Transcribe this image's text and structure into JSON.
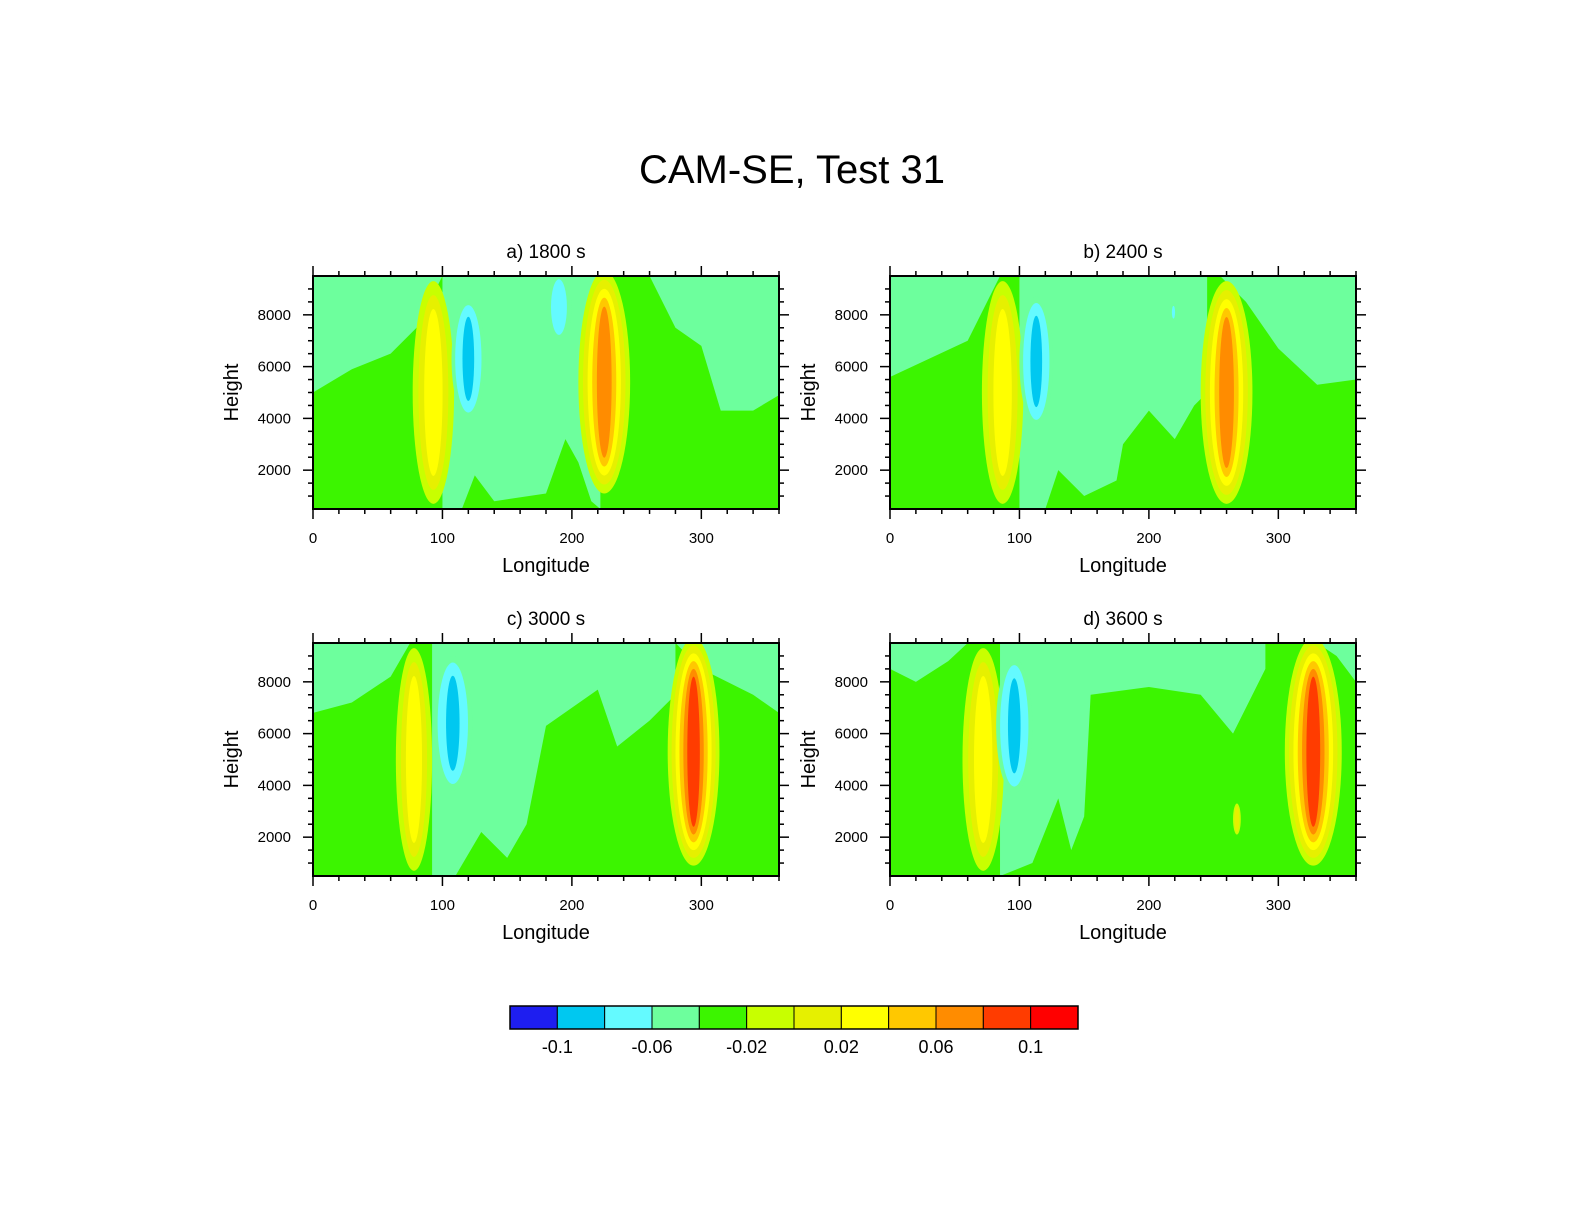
{
  "figure": {
    "title": "CAM-SE, Test 31"
  },
  "chart_data": {
    "type": "contour",
    "xlabel": "Longitude",
    "ylabel": "Height",
    "xlim": [
      0,
      360
    ],
    "ylim": [
      500,
      9500
    ],
    "xticks": [
      0,
      100,
      200,
      300
    ],
    "yticks": [
      2000,
      4000,
      6000,
      8000
    ],
    "colorbar": {
      "colors": [
        "#1e1ef0",
        "#00c8f0",
        "#64faff",
        "#6dff9d",
        "#3cf500",
        "#c8ff00",
        "#e6f000",
        "#ffff00",
        "#ffc800",
        "#ff8c00",
        "#ff3c00",
        "#ff0000"
      ],
      "tick_labels": [
        "-0.1",
        "-0.06",
        "-0.02",
        "0.02",
        "0.06",
        "0.1"
      ],
      "levels": [
        -0.1,
        -0.08,
        -0.06,
        -0.04,
        -0.02,
        0,
        0.02,
        0.04,
        0.06,
        0.08,
        0.1
      ]
    },
    "panels": [
      {
        "subtitle": "a) 1800 s",
        "background_color": "#3cf500",
        "upper_region_boundary": [
          [
            0,
            5000
          ],
          [
            30,
            5900
          ],
          [
            60,
            6500
          ],
          [
            80,
            7500
          ],
          [
            100,
            9500
          ],
          [
            170,
            9500
          ],
          [
            200,
            9500
          ],
          [
            210,
            9500
          ],
          [
            260,
            9500
          ],
          [
            280,
            7500
          ],
          [
            300,
            6800
          ],
          [
            315,
            4300
          ],
          [
            340,
            4300
          ],
          [
            360,
            4900
          ]
        ],
        "negative_region_boundary": [
          [
            100,
            500
          ],
          [
            115,
            500
          ],
          [
            125,
            1800
          ],
          [
            140,
            800
          ],
          [
            180,
            1100
          ],
          [
            190,
            2500
          ],
          [
            195,
            3200
          ],
          [
            205,
            2300
          ],
          [
            215,
            800
          ],
          [
            222,
            500
          ]
        ],
        "features": [
          {
            "center_lon": 93,
            "center_height": 5000,
            "half_width_lon": 16,
            "half_height": 4300,
            "peak_level": 3
          },
          {
            "center_lon": 225,
            "center_height": 5400,
            "half_width_lon": 20,
            "half_height": 4300,
            "peak_level": 5
          },
          {
            "center_lon": 120,
            "center_height": 6300,
            "half_width_lon": 13,
            "half_height": 2300,
            "peak_level": -4
          },
          {
            "center_lon": 190,
            "center_height": 8300,
            "half_width_lon": 10,
            "half_height": 1300,
            "peak_level": -2
          }
        ]
      },
      {
        "subtitle": "b) 2400 s",
        "background_color": "#3cf500",
        "upper_region_boundary": [
          [
            0,
            5600
          ],
          [
            30,
            6300
          ],
          [
            60,
            7000
          ],
          [
            85,
            9500
          ],
          [
            255,
            9500
          ],
          [
            275,
            8500
          ],
          [
            300,
            6700
          ],
          [
            330,
            5300
          ],
          [
            360,
            5500
          ]
        ],
        "negative_region_boundary": [
          [
            100,
            500
          ],
          [
            120,
            500
          ],
          [
            130,
            2000
          ],
          [
            150,
            1000
          ],
          [
            175,
            1600
          ],
          [
            180,
            3000
          ],
          [
            200,
            4300
          ],
          [
            220,
            3200
          ],
          [
            235,
            4500
          ],
          [
            245,
            5000
          ]
        ],
        "features": [
          {
            "center_lon": 87,
            "center_height": 5000,
            "half_width_lon": 16,
            "half_height": 4300,
            "peak_level": 3
          },
          {
            "center_lon": 260,
            "center_height": 5000,
            "half_width_lon": 20,
            "half_height": 4300,
            "peak_level": 5
          },
          {
            "center_lon": 113,
            "center_height": 6200,
            "half_width_lon": 13,
            "half_height": 2500,
            "peak_level": -4
          },
          {
            "center_lon": 219,
            "center_height": 8100,
            "half_width_lon": 2,
            "half_height": 300,
            "peak_level": -2
          }
        ]
      },
      {
        "subtitle": "c) 3000 s",
        "background_color": "#3cf500",
        "upper_region_boundary": [
          [
            0,
            6800
          ],
          [
            30,
            7200
          ],
          [
            60,
            8200
          ],
          [
            75,
            9500
          ],
          [
            280,
            9500
          ],
          [
            300,
            8500
          ],
          [
            340,
            7500
          ],
          [
            360,
            6800
          ]
        ],
        "negative_region_boundary": [
          [
            92,
            500
          ],
          [
            110,
            500
          ],
          [
            130,
            2200
          ],
          [
            150,
            1200
          ],
          [
            165,
            2500
          ],
          [
            180,
            6300
          ],
          [
            220,
            7700
          ],
          [
            235,
            5500
          ],
          [
            260,
            6500
          ],
          [
            280,
            7500
          ]
        ],
        "features": [
          {
            "center_lon": 78,
            "center_height": 5000,
            "half_width_lon": 14,
            "half_height": 4300,
            "peak_level": 3
          },
          {
            "center_lon": 294,
            "center_height": 5300,
            "half_width_lon": 20,
            "half_height": 4400,
            "peak_level": 6
          },
          {
            "center_lon": 108,
            "center_height": 6400,
            "half_width_lon": 15,
            "half_height": 2600,
            "peak_level": -4
          }
        ]
      },
      {
        "subtitle": "d) 3600 s",
        "background_color": "#3cf500",
        "upper_region_boundary": [
          [
            0,
            8500
          ],
          [
            20,
            8000
          ],
          [
            45,
            8800
          ],
          [
            60,
            9500
          ],
          [
            330,
            9500
          ],
          [
            345,
            9000
          ],
          [
            360,
            8000
          ]
        ],
        "negative_region_boundary": [
          [
            85,
            500
          ],
          [
            110,
            1000
          ],
          [
            130,
            3500
          ],
          [
            140,
            1500
          ],
          [
            150,
            2800
          ],
          [
            155,
            7500
          ],
          [
            200,
            7800
          ],
          [
            240,
            7500
          ],
          [
            265,
            6000
          ],
          [
            290,
            8500
          ]
        ],
        "features": [
          {
            "center_lon": 72,
            "center_height": 5000,
            "half_width_lon": 16,
            "half_height": 4300,
            "peak_level": 3
          },
          {
            "center_lon": 327,
            "center_height": 5300,
            "half_width_lon": 22,
            "half_height": 4400,
            "peak_level": 6
          },
          {
            "center_lon": 96,
            "center_height": 6300,
            "half_width_lon": 14,
            "half_height": 2600,
            "peak_level": -4
          },
          {
            "center_lon": 268,
            "center_height": 2700,
            "half_width_lon": 3,
            "half_height": 600,
            "peak_level": 2
          }
        ]
      }
    ]
  }
}
